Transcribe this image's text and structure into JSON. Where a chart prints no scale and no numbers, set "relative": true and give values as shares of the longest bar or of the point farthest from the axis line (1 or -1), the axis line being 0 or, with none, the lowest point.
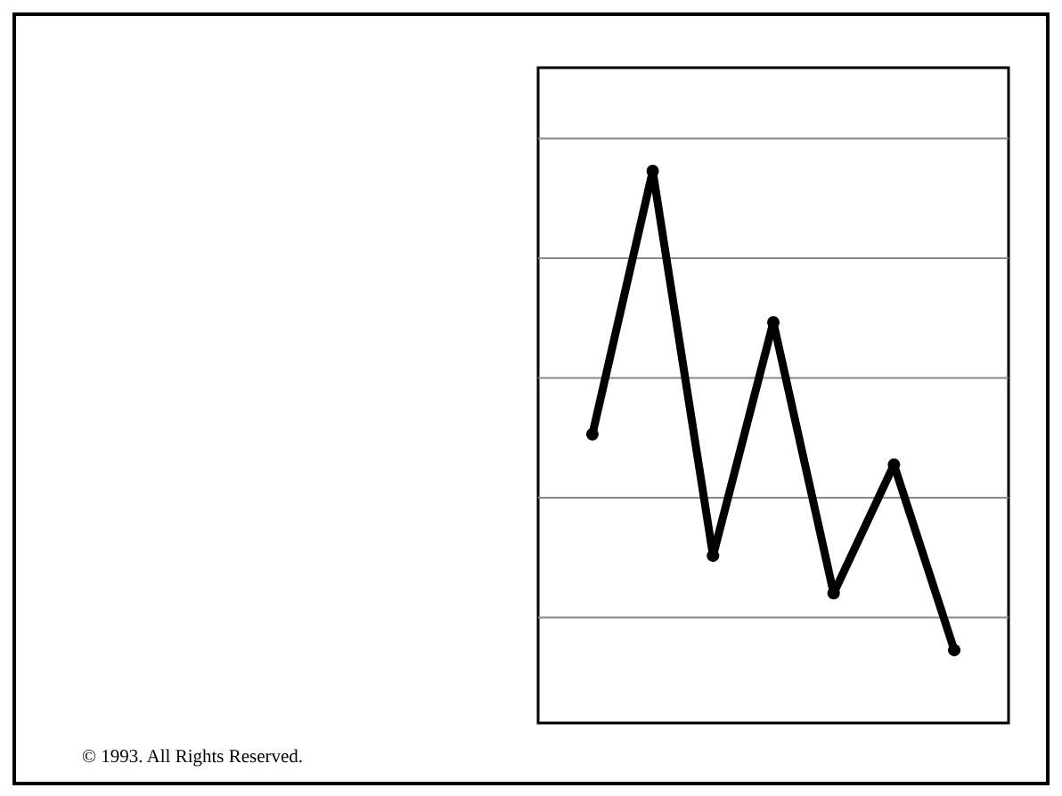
{
  "chart_data": {
    "type": "line",
    "relative": true,
    "categories": [
      null,
      null,
      null,
      null,
      null,
      null,
      null
    ],
    "series": [
      {
        "color": "#000000",
        "values": [
          0.523,
          1,
          0.303,
          0.726,
          0.235,
          0.468,
          0.132
        ]
      }
    ],
    "marker": "circle",
    "line_style": "solid",
    "grid": "y",
    "annotations": [
      "© 1993. All Rights Reserved."
    ]
  }
}
